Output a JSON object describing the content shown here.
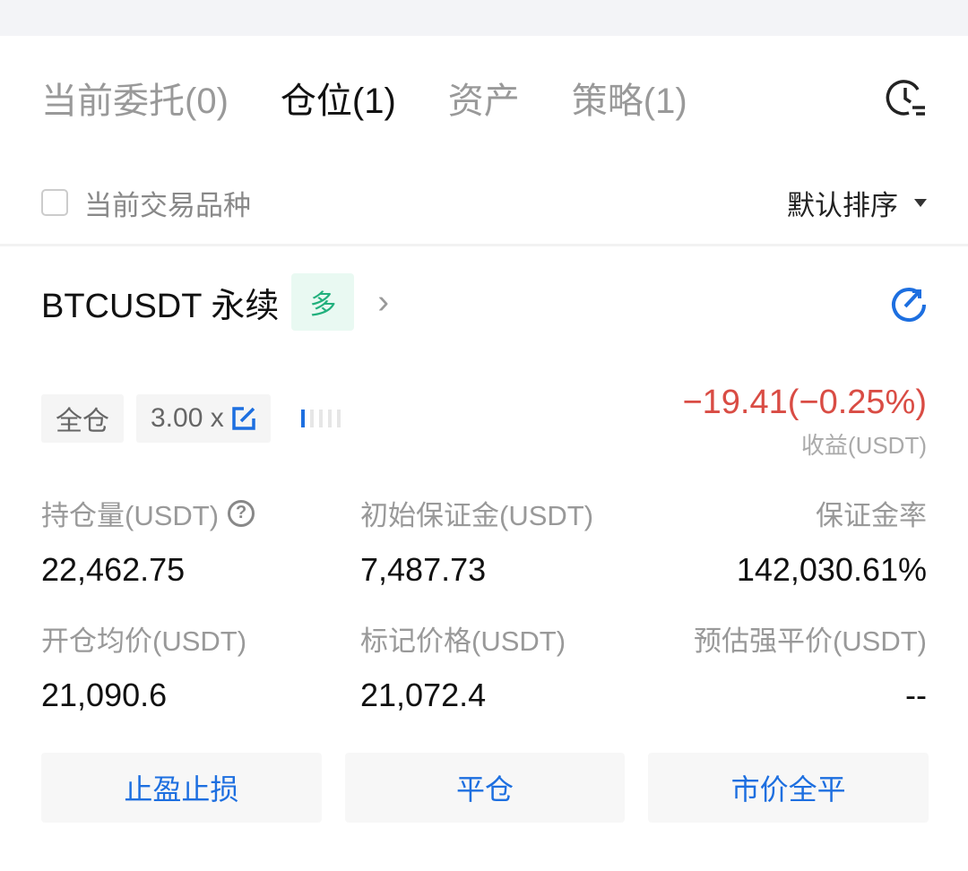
{
  "tabs": [
    {
      "label": "当前委托(0)",
      "active": false
    },
    {
      "label": "仓位(1)",
      "active": true
    },
    {
      "label": "资产",
      "active": false
    },
    {
      "label": "策略(1)",
      "active": false
    }
  ],
  "filter": {
    "checkbox_label": "当前交易品种",
    "checked": false,
    "sort_label": "默认排序"
  },
  "position": {
    "symbol": "BTCUSDT 永续",
    "side": "多",
    "margin_mode": "全仓",
    "leverage": "3.00 x",
    "risk_level": 1,
    "pnl": "−19.41(−0.25%)",
    "pnl_label": "收益(USDT)",
    "metrics": [
      {
        "label": "持仓量(USDT)",
        "value": "22,462.75"
      },
      {
        "label": "初始保证金(USDT)",
        "value": "7,487.73"
      },
      {
        "label": "保证金率",
        "value": "142,030.61%"
      },
      {
        "label": "开仓均价(USDT)",
        "value": "21,090.6"
      },
      {
        "label": "标记价格(USDT)",
        "value": "21,072.4"
      },
      {
        "label": "预估强平价(USDT)",
        "value": "--"
      }
    ]
  },
  "actions": [
    "止盈止损",
    "平仓",
    "市价全平"
  ],
  "colors": {
    "accent": "#1d6fe0",
    "long": "#22b07d",
    "loss": "#d94c44"
  }
}
